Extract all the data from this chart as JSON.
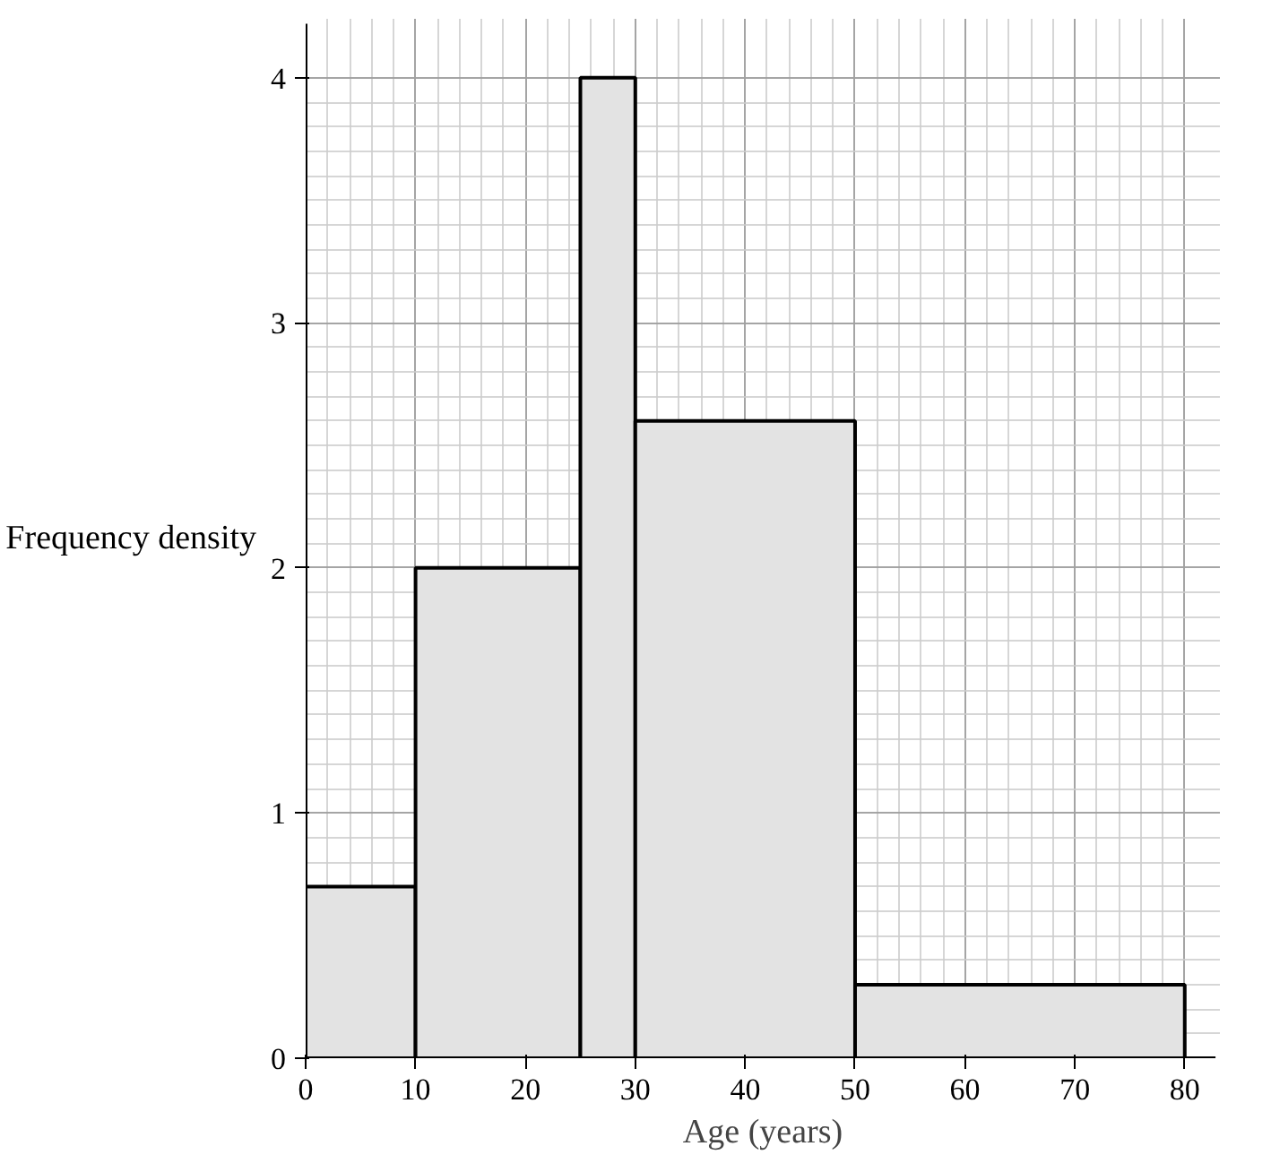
{
  "chart_data": {
    "type": "histogram",
    "xlabel": "Age (years)",
    "ylabel": "Frequency density",
    "bins": [
      0,
      10,
      25,
      30,
      50,
      80
    ],
    "values": [
      0.7,
      2,
      4,
      2.6,
      0.3
    ],
    "color": "#e3e3e3",
    "xlim": [
      0,
      80
    ],
    "ylim": [
      0,
      4
    ],
    "xticks": [
      0,
      10,
      20,
      30,
      40,
      50,
      60,
      70,
      80
    ],
    "yticks": [
      0,
      1,
      2,
      3,
      4
    ],
    "grid": true
  }
}
